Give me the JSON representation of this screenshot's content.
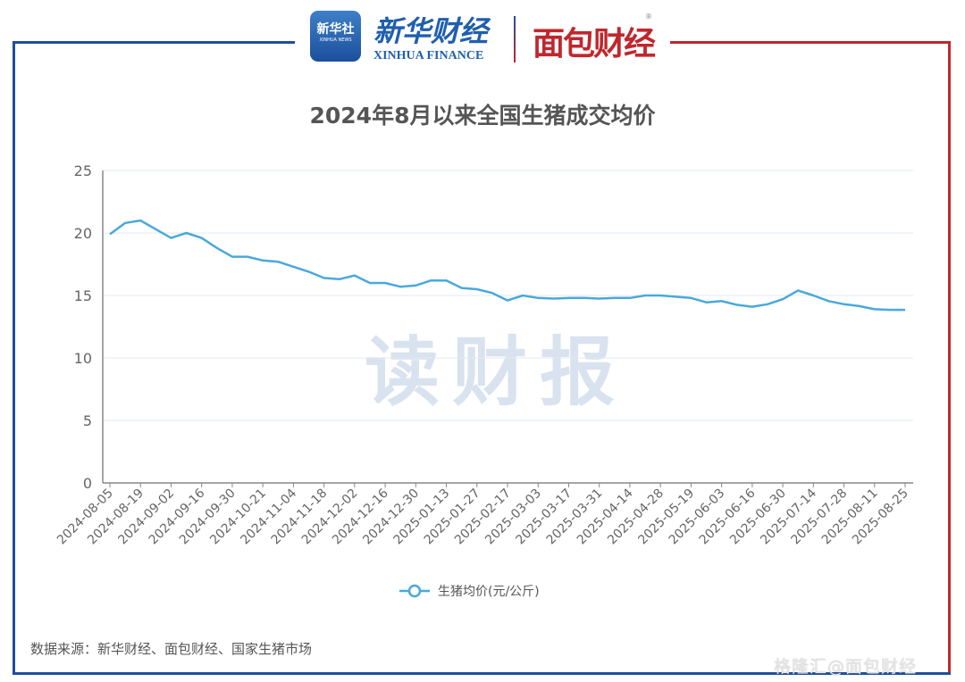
{
  "header": {
    "xinhua_app_name": "新华社",
    "xinhua_app_sub": "XINHUA NEWS",
    "xinhua_finance_cn": "新华财经",
    "xinhua_finance_en": "XINHUA FINANCE",
    "mianbao_logo": "面包财经",
    "registered_mark": "®"
  },
  "watermark": "读财报",
  "footer": {
    "source": "数据来源：新华财经、面包财经、国家生猪市场",
    "credit": "格隆汇@面包财经"
  },
  "colors": {
    "line": "#4aa8dc",
    "frame_blue": "#1f4e9a",
    "frame_red": "#c0272d",
    "grid": "#e3e8f3"
  },
  "chart_data": {
    "type": "line",
    "title": "2024年8月以来全国生猪成交均价",
    "xlabel": "",
    "ylabel": "",
    "ylim": [
      0,
      25
    ],
    "yticks": [
      0,
      5,
      10,
      15,
      20,
      25
    ],
    "grid": true,
    "legend_position": "bottom-center",
    "x_tick_labels": [
      "2024-08-05",
      "2024-08-19",
      "2024-09-02",
      "2024-09-16",
      "2024-09-30",
      "2024-10-21",
      "2024-11-04",
      "2024-11-18",
      "2024-12-02",
      "2024-12-16",
      "2024-12-30",
      "2025-01-13",
      "2025-01-27",
      "2025-02-17",
      "2025-03-03",
      "2025-03-17",
      "2025-03-31",
      "2025-04-14",
      "2025-04-28",
      "2025-05-19",
      "2025-06-03",
      "2025-06-16",
      "2025-06-30",
      "2025-07-14",
      "2025-07-28",
      "2025-08-11",
      "2025-08-25"
    ],
    "series": [
      {
        "name": "生猪均价(元/公斤)",
        "values": [
          19.9,
          20.8,
          21.0,
          20.3,
          19.6,
          20.0,
          19.6,
          18.8,
          18.1,
          18.1,
          17.8,
          17.7,
          17.3,
          16.9,
          16.4,
          16.3,
          16.6,
          16.0,
          16.0,
          15.7,
          15.8,
          16.2,
          16.2,
          15.6,
          15.5,
          15.2,
          14.6,
          15.0,
          14.8,
          14.75,
          14.8,
          14.8,
          14.75,
          14.8,
          14.8,
          15.0,
          15.0,
          14.9,
          14.8,
          14.45,
          14.55,
          14.25,
          14.1,
          14.3,
          14.7,
          15.4,
          15.0,
          14.55,
          14.3,
          14.15,
          13.9,
          13.85,
          13.85
        ]
      }
    ]
  }
}
